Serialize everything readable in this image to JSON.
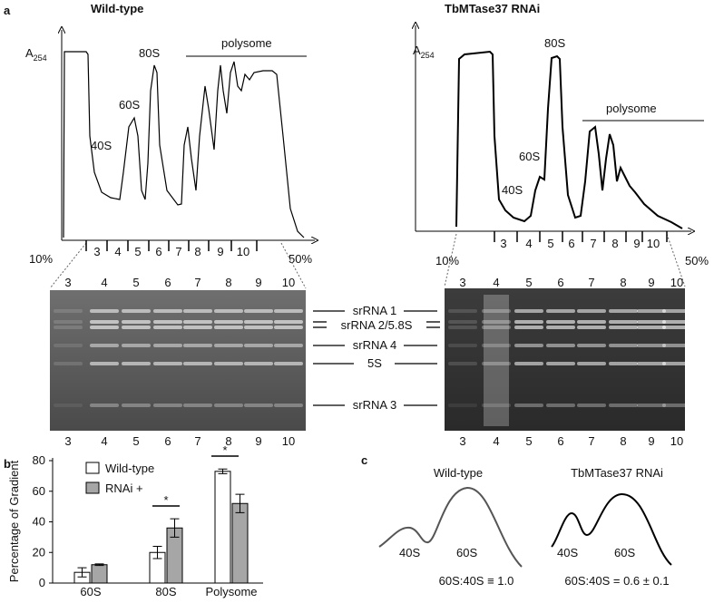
{
  "panel_labels": {
    "a": "a",
    "b": "b",
    "c": "c"
  },
  "panel_a": {
    "left_title": "Wild-type",
    "right_title": "TbMTase37 RNAi",
    "absorbance": {
      "main": "A",
      "sub": "254"
    },
    "peaks": {
      "s40": "40S",
      "s60": "60S",
      "s80": "80S",
      "polysome": "polysome"
    },
    "gradient": {
      "start": "10%",
      "end": "50%"
    },
    "fractions": [
      "3",
      "4",
      "5",
      "6",
      "7",
      "8",
      "9",
      "10"
    ],
    "bands": [
      "srRNA 1",
      "srRNA 2/5.8S",
      "srRNA 4",
      "5S",
      "srRNA 3"
    ]
  },
  "chart_data": {
    "type": "bar",
    "ylabel": "Percentage of Gradient",
    "categories": [
      "60S",
      "80S",
      "Polysome"
    ],
    "series": [
      {
        "name": "Wild-type",
        "color": "#ffffff",
        "values": [
          7,
          20,
          73
        ],
        "errors": [
          3,
          4,
          1.5
        ]
      },
      {
        "name": "RNAi +",
        "color": "#a6a6a6",
        "values": [
          12,
          36,
          52
        ],
        "errors": [
          0.5,
          6,
          6
        ]
      }
    ],
    "ylim": [
      0,
      80
    ],
    "yticks": [
      0,
      20,
      40,
      60,
      80
    ],
    "annotations": [
      "*",
      "*"
    ]
  },
  "panel_c": {
    "left_title": "Wild-type",
    "right_title": "TbMTase37 RNAi",
    "s40": "40S",
    "s60": "60S",
    "left_ratio": "60S:40S ≡ 1.0",
    "right_ratio": "60S:40S = 0.6 ± 0.1"
  }
}
